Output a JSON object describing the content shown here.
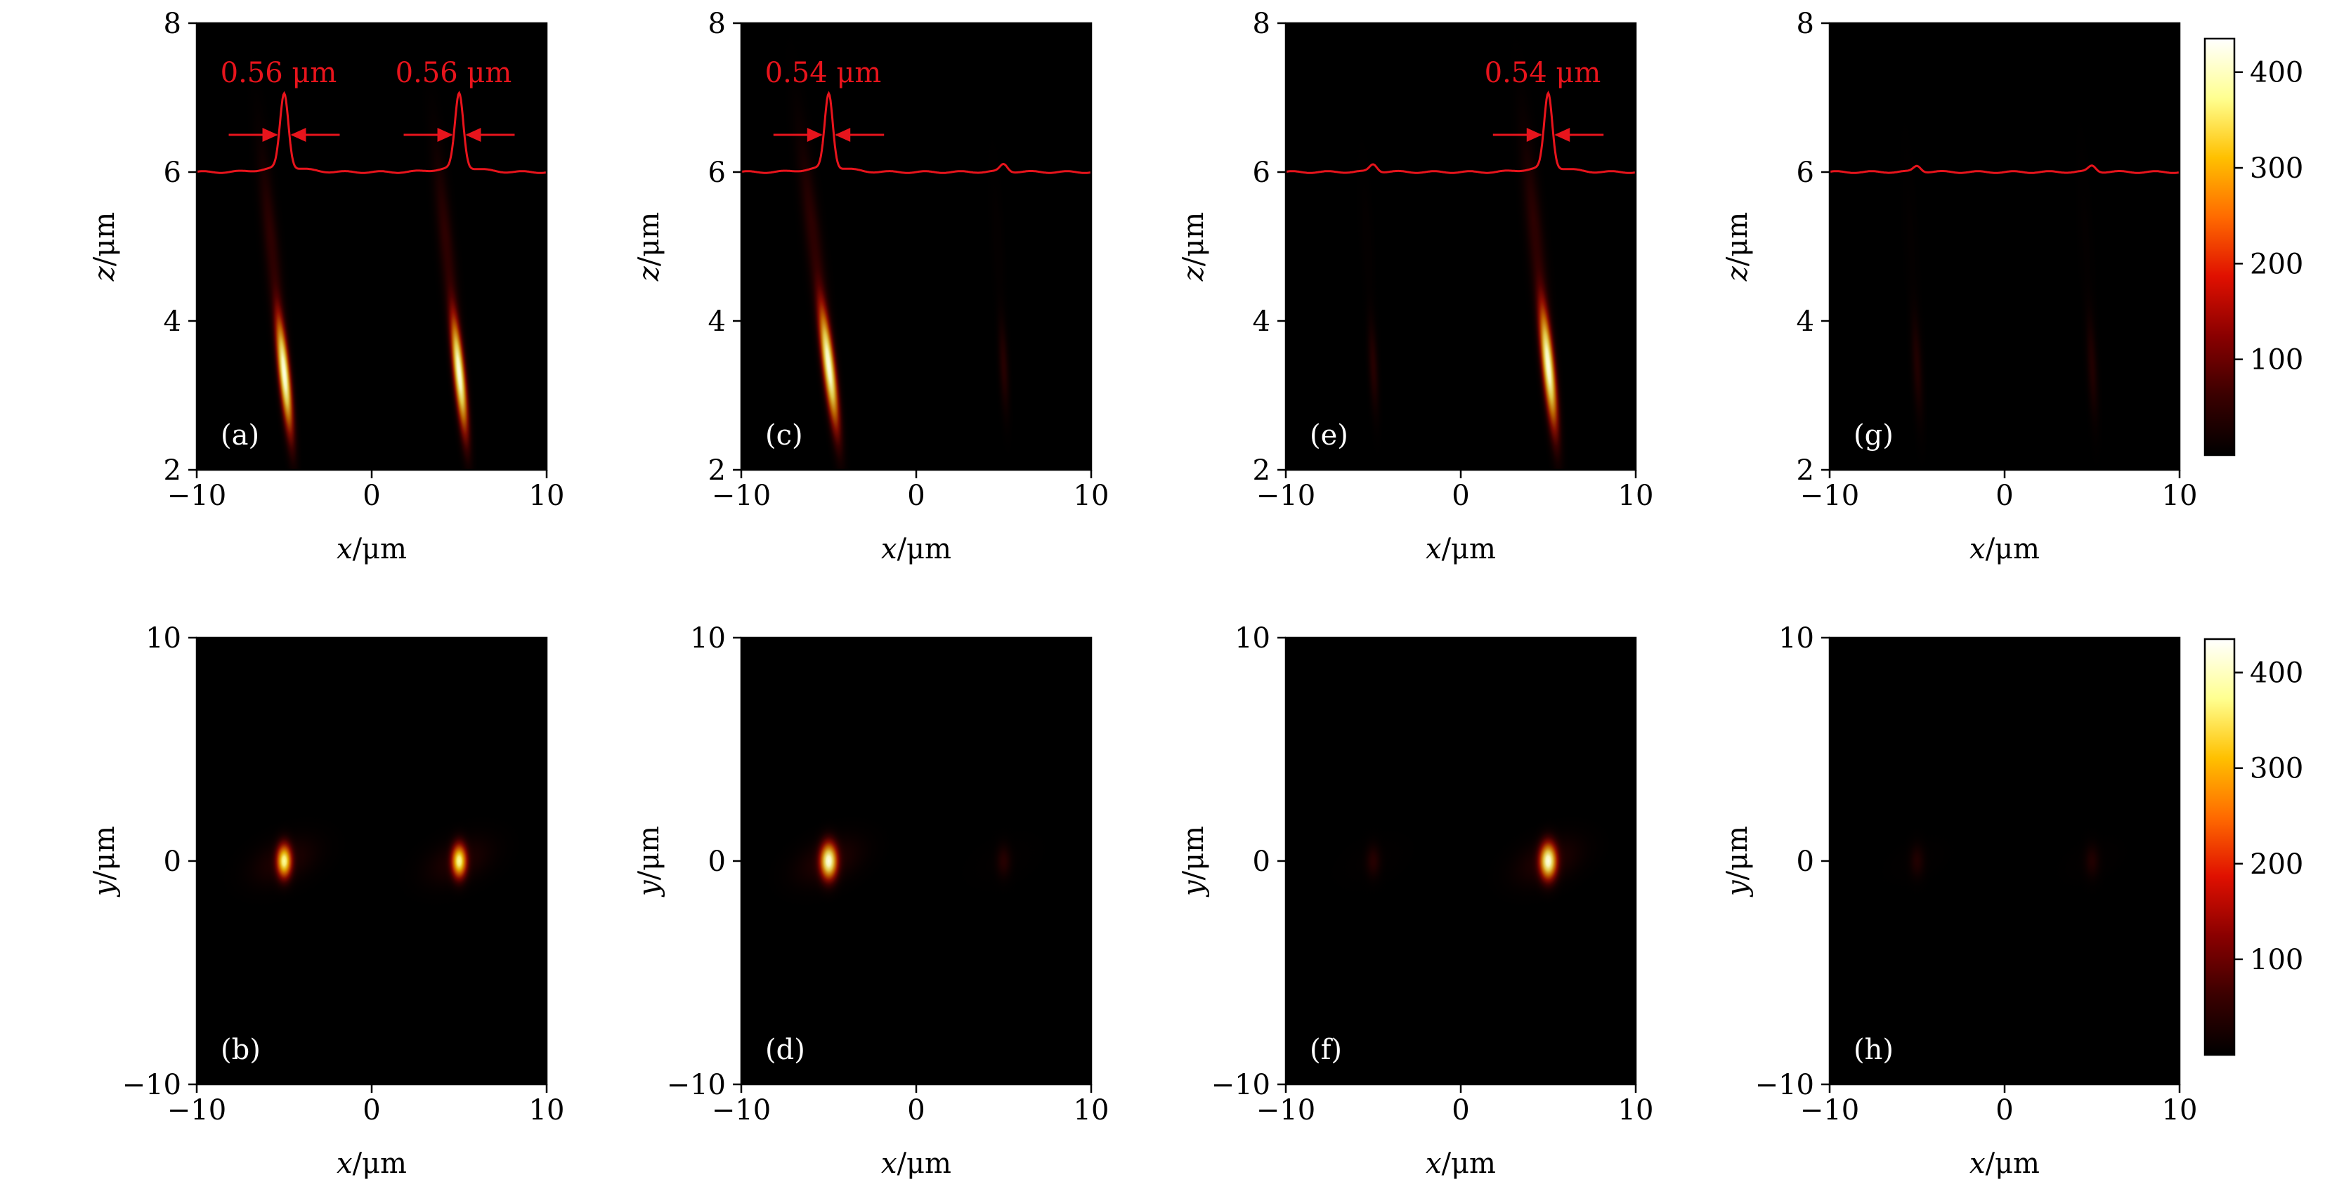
{
  "figure": {
    "colormap": [
      "#000000",
      "#3a0000",
      "#8a0000",
      "#e01000",
      "#ff6a00",
      "#ffc000",
      "#ffff90",
      "#ffffff"
    ],
    "annotation_color": "#e8141c"
  },
  "colorbars": [
    {
      "id": "top",
      "range": [
        0,
        435
      ],
      "ticks": [
        100,
        200,
        300,
        400
      ]
    },
    {
      "id": "bottom",
      "range": [
        0,
        435
      ],
      "ticks": [
        100,
        200,
        300,
        400
      ]
    }
  ],
  "chart_data": [
    {
      "type": "heatmap",
      "panel_label": "(a)",
      "xlabel_var": "x",
      "ylabel_var": "z",
      "unit": "/μm",
      "xlim": [
        -10,
        10
      ],
      "ylim": [
        2,
        8
      ],
      "xticks": [
        "−10",
        "0",
        "10"
      ],
      "yticks": [
        "2",
        "4",
        "6",
        "8"
      ],
      "foci": [
        {
          "x": -5,
          "z_center": 3.3,
          "z_spread": 0.85,
          "x_width": 0.35,
          "tilt": -0.1,
          "peak": 420
        },
        {
          "x": 5,
          "z_center": 3.3,
          "z_spread": 0.85,
          "x_width": 0.35,
          "tilt": -0.1,
          "peak": 420
        }
      ],
      "profile": {
        "baseline_z": 6,
        "peaks": [
          {
            "x": -5,
            "height": 1.0,
            "fwhm": 0.56
          },
          {
            "x": 5,
            "height": 1.0,
            "fwhm": 0.56
          }
        ]
      },
      "annotations": [
        {
          "text": "0.56 μm",
          "x": -5
        },
        {
          "text": "0.56 μm",
          "x": 5
        }
      ]
    },
    {
      "type": "heatmap",
      "panel_label": "(b)",
      "xlabel_var": "x",
      "ylabel_var": "y",
      "unit": "/μm",
      "xlim": [
        -10,
        10
      ],
      "ylim": [
        -10,
        10
      ],
      "xticks": [
        "−10",
        "0",
        "10"
      ],
      "yticks": [
        "−10",
        "0",
        "10"
      ],
      "spots": [
        {
          "x": -5,
          "y": 0,
          "peak": 380,
          "sx": 0.35,
          "sy": 0.6
        },
        {
          "x": 5,
          "y": 0,
          "peak": 380,
          "sx": 0.35,
          "sy": 0.6
        }
      ]
    },
    {
      "type": "heatmap",
      "panel_label": "(c)",
      "xlabel_var": "x",
      "ylabel_var": "z",
      "unit": "/μm",
      "xlim": [
        -10,
        10
      ],
      "ylim": [
        2,
        8
      ],
      "xticks": [
        "−10",
        "0",
        "10"
      ],
      "yticks": [
        "2",
        "4",
        "6",
        "8"
      ],
      "foci": [
        {
          "x": -5,
          "z_center": 3.4,
          "z_spread": 0.9,
          "x_width": 0.38,
          "tilt": -0.12,
          "peak": 420
        },
        {
          "x": 5,
          "z_center": 3.4,
          "z_spread": 0.7,
          "x_width": 0.3,
          "tilt": -0.05,
          "peak": 40
        }
      ],
      "profile": {
        "baseline_z": 6,
        "peaks": [
          {
            "x": -5,
            "height": 1.0,
            "fwhm": 0.54
          },
          {
            "x": 5,
            "height": 0.1,
            "fwhm": 0.5
          }
        ]
      },
      "annotations": [
        {
          "text": "0.54 μm",
          "x": -5
        }
      ]
    },
    {
      "type": "heatmap",
      "panel_label": "(d)",
      "xlabel_var": "x",
      "ylabel_var": "y",
      "unit": "/μm",
      "xlim": [
        -10,
        10
      ],
      "ylim": [
        -10,
        10
      ],
      "xticks": [
        "−10",
        "0",
        "10"
      ],
      "yticks": [
        "−10",
        "0",
        "10"
      ],
      "spots": [
        {
          "x": -5,
          "y": 0,
          "peak": 420,
          "sx": 0.4,
          "sy": 0.65
        },
        {
          "x": 5,
          "y": 0,
          "peak": 40,
          "sx": 0.35,
          "sy": 0.6
        }
      ]
    },
    {
      "type": "heatmap",
      "panel_label": "(e)",
      "xlabel_var": "x",
      "ylabel_var": "z",
      "unit": "/μm",
      "xlim": [
        -10,
        10
      ],
      "ylim": [
        2,
        8
      ],
      "xticks": [
        "−10",
        "0",
        "10"
      ],
      "yticks": [
        "2",
        "4",
        "6",
        "8"
      ],
      "foci": [
        {
          "x": -5,
          "z_center": 3.4,
          "z_spread": 0.7,
          "x_width": 0.3,
          "tilt": -0.05,
          "peak": 40
        },
        {
          "x": 5,
          "z_center": 3.4,
          "z_spread": 0.9,
          "x_width": 0.38,
          "tilt": -0.1,
          "peak": 420
        }
      ],
      "profile": {
        "baseline_z": 6,
        "peaks": [
          {
            "x": -5,
            "height": 0.1,
            "fwhm": 0.5
          },
          {
            "x": 5,
            "height": 1.0,
            "fwhm": 0.54
          }
        ]
      },
      "annotations": [
        {
          "text": "0.54 μm",
          "x": 5
        }
      ]
    },
    {
      "type": "heatmap",
      "panel_label": "(f)",
      "xlabel_var": "x",
      "ylabel_var": "y",
      "unit": "/μm",
      "xlim": [
        -10,
        10
      ],
      "ylim": [
        -10,
        10
      ],
      "xticks": [
        "−10",
        "0",
        "10"
      ],
      "yticks": [
        "−10",
        "0",
        "10"
      ],
      "spots": [
        {
          "x": -5,
          "y": 0,
          "peak": 40,
          "sx": 0.35,
          "sy": 0.6
        },
        {
          "x": 5,
          "y": 0,
          "peak": 420,
          "sx": 0.4,
          "sy": 0.65
        }
      ]
    },
    {
      "type": "heatmap",
      "panel_label": "(g)",
      "xlabel_var": "x",
      "ylabel_var": "z",
      "unit": "/μm",
      "xlim": [
        -10,
        10
      ],
      "ylim": [
        2,
        8
      ],
      "xticks": [
        "−10",
        "0",
        "10"
      ],
      "yticks": [
        "2",
        "4",
        "6",
        "8"
      ],
      "foci": [
        {
          "x": -5,
          "z_center": 3.4,
          "z_spread": 0.8,
          "x_width": 0.32,
          "tilt": -0.05,
          "peak": 35
        },
        {
          "x": 5,
          "z_center": 3.4,
          "z_spread": 0.8,
          "x_width": 0.32,
          "tilt": -0.05,
          "peak": 35
        }
      ],
      "profile": {
        "baseline_z": 6,
        "peaks": [
          {
            "x": -5,
            "height": 0.08,
            "fwhm": 0.5
          },
          {
            "x": 5,
            "height": 0.08,
            "fwhm": 0.5
          }
        ]
      },
      "annotations": []
    },
    {
      "type": "heatmap",
      "panel_label": "(h)",
      "xlabel_var": "x",
      "ylabel_var": "y",
      "unit": "/μm",
      "xlim": [
        -10,
        10
      ],
      "ylim": [
        -10,
        10
      ],
      "xticks": [
        "−10",
        "0",
        "10"
      ],
      "yticks": [
        "−10",
        "0",
        "10"
      ],
      "spots": [
        {
          "x": -5,
          "y": 0,
          "peak": 35,
          "sx": 0.35,
          "sy": 0.6
        },
        {
          "x": 5,
          "y": 0,
          "peak": 35,
          "sx": 0.35,
          "sy": 0.6
        }
      ]
    }
  ]
}
